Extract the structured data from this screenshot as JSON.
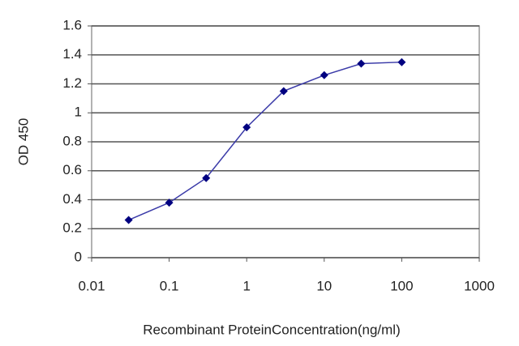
{
  "chart_data": {
    "type": "line",
    "xlabel": "Recombinant ProteinConcentration(ng/ml)",
    "ylabel": "OD 450",
    "x": [
      0.03,
      0.1,
      0.3,
      1,
      3,
      10,
      30,
      100
    ],
    "series": [
      {
        "color": "#3a3aa8",
        "marker_color": "#000080",
        "values": [
          0.26,
          0.38,
          0.55,
          0.9,
          1.15,
          1.26,
          1.34,
          1.35
        ]
      }
    ],
    "xscale": "log",
    "xlim": [
      0.01,
      1000
    ],
    "xticks": [
      0.01,
      0.1,
      1,
      10,
      100,
      1000
    ],
    "ylim": [
      0,
      1.6
    ],
    "yticks": [
      0,
      0.2,
      0.4,
      0.6,
      0.8,
      1,
      1.2,
      1.4,
      1.6
    ],
    "grid": true
  }
}
